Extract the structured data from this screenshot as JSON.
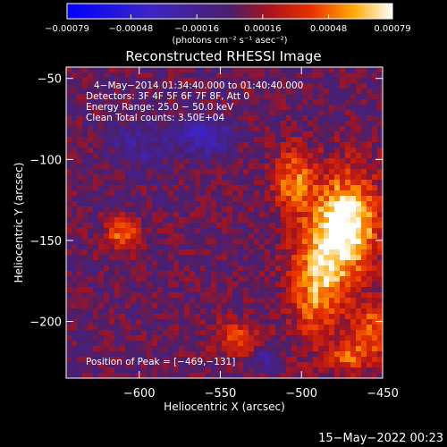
{
  "chart_data": {
    "type": "heatmap",
    "title": "Reconstructed RHESSI Image",
    "xlabel": "Heliocentric X (arcsec)",
    "ylabel": "Heliocentric Y (arcsec)",
    "xlim": [
      -645,
      -450
    ],
    "ylim": [
      -235,
      -43
    ],
    "x_ticks": [
      -600,
      -550,
      -500,
      -450
    ],
    "y_ticks": [
      -50,
      -100,
      -150,
      -200
    ],
    "x_tick_labels": [
      "−600",
      "−550",
      "−500",
      "−450"
    ],
    "y_tick_labels": [
      "−50",
      "−100",
      "−150",
      "−200"
    ],
    "colorbar": {
      "range": [
        -0.00079,
        0.00079
      ],
      "tick_values": [
        -0.00079,
        -0.00048,
        -0.00016,
        0.00016,
        0.00048,
        0.00079
      ],
      "tick_labels": [
        "−0.00079",
        "−0.00048",
        "−0.00016",
        "0.00016",
        "0.00048",
        "0.00079"
      ],
      "unit_label": "(photons cm⁻² s⁻¹ asec⁻²)",
      "colormap": "blue-purple-red-yellow-white"
    },
    "annotations": [
      "4−May−2014 01:34:40.000 to 01:40:40.000",
      "Detectors: 3F 4F 5F 6F 7F 8F, Att 0",
      "Energy Range: 25.0 − 50.0 keV",
      "Clean     Total counts: 3.50E+04"
    ],
    "peak_label": "Position of Peak = [−469,−131]",
    "peak": [
      -469,
      -131
    ],
    "sources": [
      {
        "x": -472,
        "y": -140,
        "sx": 14,
        "sy": 22,
        "amp": 0.00079
      },
      {
        "x": -490,
        "y": -175,
        "sx": 12,
        "sy": 25,
        "amp": 0.00055
      },
      {
        "x": -505,
        "y": -112,
        "sx": 9,
        "sy": 14,
        "amp": 0.00045
      },
      {
        "x": -455,
        "y": -205,
        "sx": 9,
        "sy": 12,
        "amp": 0.0004
      },
      {
        "x": -610,
        "y": -145,
        "sx": 7,
        "sy": 7,
        "amp": 0.00045
      },
      {
        "x": -540,
        "y": -210,
        "sx": 10,
        "sy": 7,
        "amp": 0.00035
      },
      {
        "x": -470,
        "y": -222,
        "sx": 9,
        "sy": 7,
        "amp": 0.00035
      },
      {
        "x": -560,
        "y": -85,
        "sx": 11,
        "sy": 8,
        "amp": -0.0004
      },
      {
        "x": -600,
        "y": -90,
        "sx": 14,
        "sy": 12,
        "amp": -0.0002
      },
      {
        "x": -520,
        "y": -222,
        "sx": 5,
        "sy": 5,
        "amp": -0.0003
      }
    ],
    "background_level": 4e-05
  },
  "timestamp": "15−May−2022 00:23",
  "colors": {
    "background": "#000000",
    "foreground": "#ffffff"
  }
}
